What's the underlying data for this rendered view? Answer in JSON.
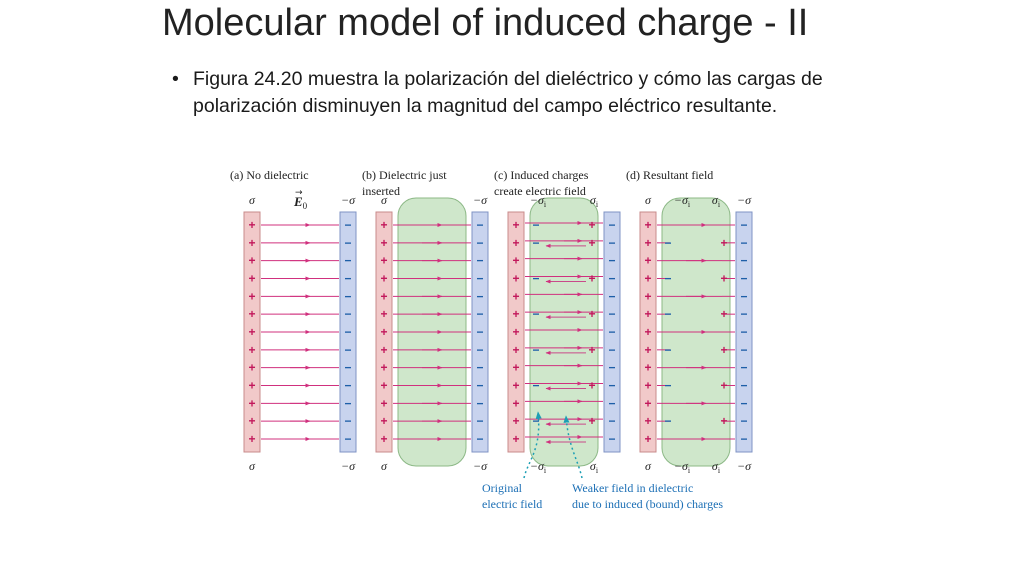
{
  "slide": {
    "title": "Molecular model of induced charge - II",
    "bullet": "Figura 24.20 muestra la polarización del dieléctrico y cómo las cargas de polarización disminuyen la magnitud del campo eléctrico resultante."
  },
  "figure": {
    "panels": [
      {
        "id": "a",
        "letter": "(a)",
        "caption": [
          "No dielectric"
        ],
        "dielectric": false,
        "induced": false,
        "field": "full"
      },
      {
        "id": "b",
        "letter": "(b)",
        "caption": [
          "Dielectric just",
          "inserted"
        ],
        "dielectric": true,
        "induced": false,
        "field": "full"
      },
      {
        "id": "c",
        "letter": "(c)",
        "caption": [
          "Induced charges",
          "create electric field"
        ],
        "dielectric": true,
        "induced": true,
        "field": "dual"
      },
      {
        "id": "d",
        "letter": "(d)",
        "caption": [
          "Resultant field"
        ],
        "dielectric": true,
        "induced": true,
        "field": "resultant"
      }
    ],
    "symbols": {
      "sigma": "σ",
      "neg_sigma": "−σ",
      "sigma_i": "σ",
      "sub_i": "i",
      "neg_sigma_i": "−σ",
      "plus": "+",
      "minus": "−",
      "field_vector": "E",
      "sub_0": "0",
      "vector_arrow": "→"
    },
    "annotations": {
      "original": [
        "Original",
        "electric field"
      ],
      "weaker": [
        "Weaker field in dielectric",
        "due to induced (bound) charges"
      ]
    },
    "colors": {
      "positive_plate": "#f1c9c9",
      "positive_plate_stroke": "#c88b8b",
      "negative_plate": "#c8d3ee",
      "negative_plate_stroke": "#7f93c4",
      "dielectric": "#cfe7cb",
      "dielectric_stroke": "#8cb886",
      "field_line": "#d0307e",
      "plus_color": "#c2185b",
      "minus_color": "#1e5fa8",
      "annotation": "#1c6fb5",
      "pointer": "#1c9fb5"
    },
    "charge_rows": 13
  }
}
